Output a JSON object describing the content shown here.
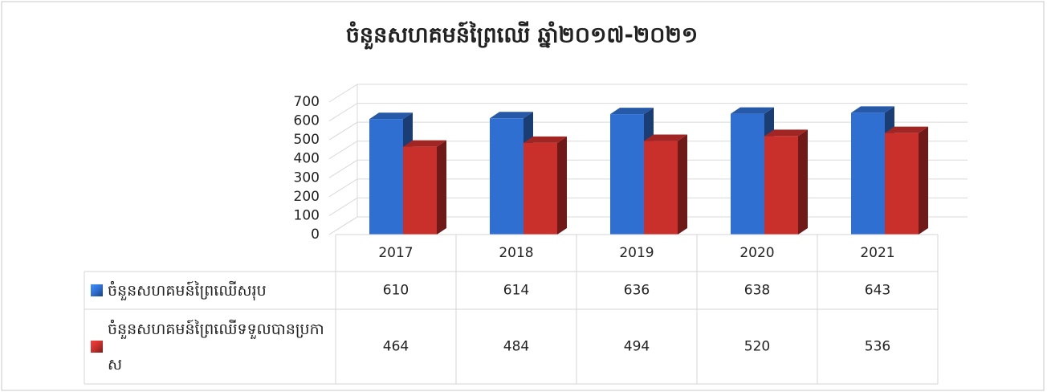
{
  "chart_data": {
    "type": "bar3d",
    "title": "ចំនួនសហគមន៍ព្រៃឈើ ឆ្នាំ២០១៧-២០២១",
    "categories": [
      "2017",
      "2018",
      "2019",
      "2020",
      "2021"
    ],
    "series": [
      {
        "name": "ចំនួនសហគមន៍ព្រៃឈើសរុប",
        "color": "#2f6fd1",
        "values": [
          610,
          614,
          636,
          638,
          643
        ]
      },
      {
        "name": "ចំនួនសហគមន៍ព្រៃឈើទទួលបានប្រកាស",
        "color": "#c9302c",
        "values": [
          464,
          484,
          494,
          520,
          536
        ]
      }
    ],
    "ylim": [
      0,
      700
    ],
    "yticks": [
      0,
      100,
      200,
      300,
      400,
      500,
      600,
      700
    ],
    "grid": true
  }
}
